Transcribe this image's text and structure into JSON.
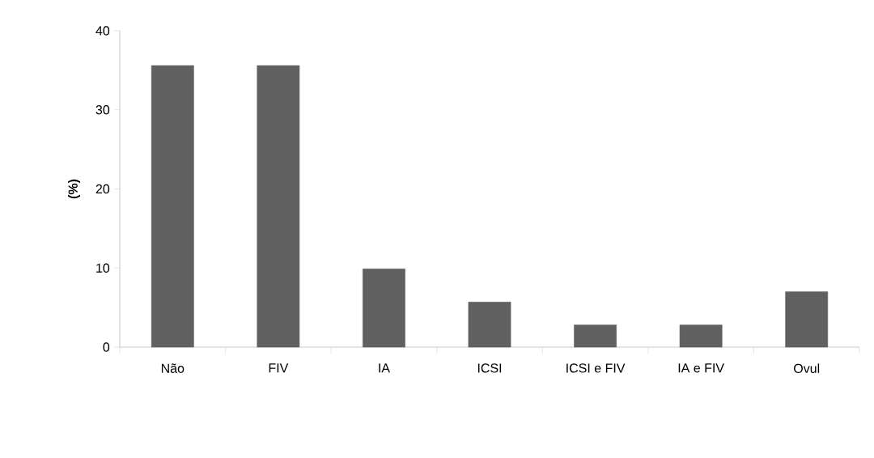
{
  "chart_data": {
    "type": "bar",
    "ylabel": "(%)",
    "categories": [
      "Não",
      "FIV",
      "IA",
      "ICSI",
      "ICSI e FIV",
      "IA e FIV",
      "Ovul"
    ],
    "values": [
      35.6,
      35.6,
      9.9,
      5.7,
      2.8,
      2.8,
      7.0
    ],
    "color": "#606060",
    "ylim": [
      0,
      40
    ],
    "yticks": [
      0,
      10,
      20,
      30,
      40
    ],
    "grid": false
  }
}
